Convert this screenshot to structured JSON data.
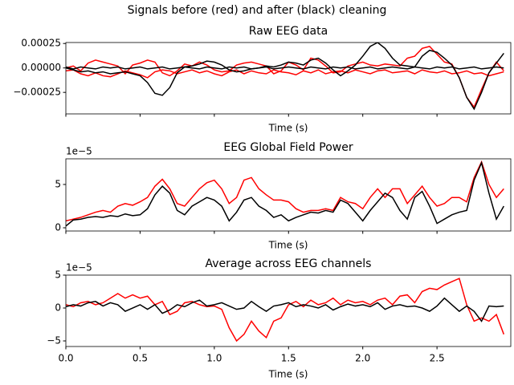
{
  "title": "Signals before (red) and after (black) cleaning",
  "chart_data": [
    {
      "type": "line",
      "title": "Raw EEG data",
      "xlabel": "Time (s)",
      "x": [
        0,
        0.05,
        0.1,
        0.15,
        0.2,
        0.25,
        0.3,
        0.35,
        0.4,
        0.45,
        0.5,
        0.55,
        0.6,
        0.65,
        0.7,
        0.75,
        0.8,
        0.85,
        0.9,
        0.95,
        1.0,
        1.05,
        1.1,
        1.15,
        1.2,
        1.25,
        1.3,
        1.35,
        1.4,
        1.45,
        1.5,
        1.55,
        1.6,
        1.65,
        1.7,
        1.75,
        1.8,
        1.85,
        1.9,
        1.95,
        2.0,
        2.05,
        2.1,
        2.15,
        2.2,
        2.25,
        2.3,
        2.35,
        2.4,
        2.45,
        2.5,
        2.55,
        2.6,
        2.65,
        2.7,
        2.75,
        2.8,
        2.85,
        2.9,
        2.95
      ],
      "xlim": [
        0,
        2.997
      ],
      "xticks": [
        0,
        0.5,
        1,
        1.5,
        2,
        2.5
      ],
      "ylim": [
        -0.00047,
        0.00026
      ],
      "yticks": [
        {
          "value": -0.00025,
          "label": "−0.00025"
        },
        {
          "value": 0,
          "label": "0.00000"
        },
        {
          "value": 0.00025,
          "label": "0.00025"
        }
      ],
      "series": [
        {
          "color": "#ff0000",
          "values": [
            0,
            2e-05,
            -3e-05,
            5e-05,
            8e-05,
            6e-05,
            4e-05,
            2e-05,
            -6e-05,
            3e-05,
            5e-05,
            8e-05,
            6e-05,
            -5e-05,
            -8e-05,
            -3e-05,
            4e-05,
            2e-05,
            6e-05,
            3e-05,
            -2e-05,
            -4e-05,
            -3e-05,
            3e-05,
            5e-05,
            6e-05,
            4e-05,
            2e-05,
            -6e-05,
            -3e-05,
            6e-05,
            3e-05,
            -2e-05,
            0.0001,
            8e-05,
            2e-05,
            -5e-05,
            -4e-05,
            2e-05,
            4e-05,
            6e-05,
            3e-05,
            2e-05,
            4e-05,
            3e-05,
            2e-05,
            0.0001,
            0.00012,
            0.0002,
            0.00022,
            0.00014,
            6e-05,
            4e-05,
            -0.0001,
            -0.0003,
            -0.0004,
            -0.00022,
            -5e-05,
            6e-05,
            -3e-05
          ]
        },
        {
          "color": "#ff0000",
          "values": [
            -3e-05,
            -2e-05,
            -6e-05,
            -8e-05,
            -5e-05,
            -8e-05,
            -9e-05,
            -6e-05,
            -3e-05,
            -5e-05,
            -7e-05,
            -0.0001,
            -4e-05,
            -2e-05,
            -3e-05,
            -6e-05,
            -4e-05,
            -2e-05,
            -5e-05,
            -3e-05,
            -6e-05,
            -8e-05,
            -4e-05,
            -2e-05,
            -6e-05,
            -3e-05,
            -5e-05,
            -6e-05,
            -2e-05,
            -4e-05,
            -5e-05,
            -7e-05,
            -3e-05,
            -5e-05,
            -2e-05,
            -6e-05,
            -4e-05,
            -3e-05,
            -5e-05,
            -2e-05,
            -4e-05,
            -6e-05,
            -3e-05,
            -2e-05,
            -5e-05,
            -4e-05,
            -3e-05,
            -6e-05,
            -2e-05,
            -4e-05,
            -5e-05,
            -3e-05,
            -6e-05,
            -5e-05,
            -3e-05,
            -6e-05,
            -5e-05,
            -8e-05,
            -6e-05,
            -4e-05
          ]
        },
        {
          "color": "#000000",
          "values": [
            1e-05,
            -1e-05,
            1e-05,
            0,
            -1e-05,
            1e-05,
            0,
            1e-05,
            -1e-05,
            0,
            1e-05,
            -1e-05,
            0,
            1e-05,
            -1e-05,
            0,
            1e-05,
            0,
            -1e-05,
            1e-05,
            0,
            -1e-05,
            1e-05,
            0,
            1e-05,
            -1e-05,
            0,
            1e-05,
            -1e-05,
            0,
            1e-05,
            0,
            -1e-05,
            1e-05,
            0,
            -1e-05,
            1e-05,
            0,
            1e-05,
            -1e-05,
            0,
            1e-05,
            -1e-05,
            0,
            1e-05,
            0,
            -1e-05,
            1e-05,
            0,
            -1e-05,
            1e-05,
            0,
            1e-05,
            -1e-05,
            0,
            1e-05,
            -1e-05,
            0,
            1e-05,
            0
          ]
        },
        {
          "color": "#000000",
          "values": [
            0,
            -2e-05,
            -4e-05,
            -3e-05,
            -5e-05,
            -4e-05,
            -6e-05,
            -5e-05,
            -4e-05,
            -6e-05,
            -8e-05,
            -0.00015,
            -0.00026,
            -0.00028,
            -0.0002,
            -5e-05,
            1e-05,
            2e-05,
            4e-05,
            7e-05,
            6e-05,
            3e-05,
            -2e-05,
            -4e-05,
            -3e-05,
            -1e-05,
            0,
            2e-05,
            1e-05,
            3e-05,
            6e-05,
            5e-05,
            3e-05,
            8e-05,
            0.0001,
            5e-05,
            -2e-05,
            -8e-05,
            -3e-05,
            3e-05,
            0.00012,
            0.00022,
            0.00026,
            0.0002,
            0.0001,
            3e-05,
            2e-05,
            1e-05,
            0.00012,
            0.00018,
            0.00016,
            0.0001,
            3e-05,
            -0.0001,
            -0.0003,
            -0.00042,
            -0.00025,
            -5e-05,
            5e-05,
            0.00015
          ]
        }
      ]
    },
    {
      "type": "line",
      "title": "EEG Global Field Power",
      "xlabel": "Time (s)",
      "offset_label": "1e−5",
      "x": [
        0,
        0.05,
        0.1,
        0.15,
        0.2,
        0.25,
        0.3,
        0.35,
        0.4,
        0.45,
        0.5,
        0.55,
        0.6,
        0.65,
        0.7,
        0.75,
        0.8,
        0.85,
        0.9,
        0.95,
        1.0,
        1.05,
        1.1,
        1.15,
        1.2,
        1.25,
        1.3,
        1.35,
        1.4,
        1.45,
        1.5,
        1.55,
        1.6,
        1.65,
        1.7,
        1.75,
        1.8,
        1.85,
        1.9,
        1.95,
        2.0,
        2.05,
        2.1,
        2.15,
        2.2,
        2.25,
        2.3,
        2.35,
        2.4,
        2.45,
        2.5,
        2.55,
        2.6,
        2.65,
        2.7,
        2.75,
        2.8,
        2.85,
        2.9,
        2.95
      ],
      "xlim": [
        0,
        2.997
      ],
      "xticks": [
        0,
        0.5,
        1,
        1.5,
        2,
        2.5
      ],
      "ylim": [
        -0.37,
        7.96
      ],
      "yticks": [
        0,
        5
      ],
      "series": [
        {
          "color": "#ff0000",
          "values": [
            0.8,
            1.0,
            1.2,
            1.5,
            1.8,
            2.0,
            1.8,
            2.5,
            2.8,
            2.6,
            3.0,
            3.5,
            4.8,
            5.6,
            4.5,
            2.8,
            2.5,
            3.5,
            4.5,
            5.2,
            5.5,
            4.5,
            2.8,
            3.5,
            5.5,
            5.8,
            4.5,
            3.8,
            3.2,
            3.2,
            3.0,
            2.2,
            1.8,
            2.0,
            2.0,
            2.2,
            2.0,
            3.5,
            3.0,
            2.8,
            2.2,
            3.5,
            4.5,
            3.5,
            4.5,
            4.5,
            2.8,
            3.8,
            4.8,
            3.5,
            2.5,
            2.8,
            3.5,
            3.5,
            3.0,
            5.8,
            7.6,
            5.0,
            3.5,
            4.5
          ]
        },
        {
          "color": "#000000",
          "values": [
            0.2,
            0.9,
            1.0,
            1.2,
            1.3,
            1.2,
            1.4,
            1.3,
            1.6,
            1.4,
            1.5,
            2.2,
            3.8,
            4.8,
            4.0,
            2.0,
            1.5,
            2.5,
            3.0,
            3.5,
            3.2,
            2.5,
            0.8,
            1.8,
            3.2,
            3.5,
            2.5,
            2.0,
            1.2,
            1.5,
            0.8,
            1.2,
            1.5,
            1.8,
            1.7,
            2.0,
            1.8,
            3.2,
            2.8,
            1.8,
            0.8,
            2.0,
            3.0,
            4.0,
            3.5,
            2.0,
            1.0,
            3.5,
            4.2,
            2.5,
            0.5,
            1.0,
            1.5,
            1.8,
            2.0,
            5.5,
            7.5,
            4.0,
            1.0,
            2.5
          ]
        }
      ]
    },
    {
      "type": "line",
      "title": "Average across EEG channels",
      "xlabel": "Time (s)",
      "offset_label": "1e−5",
      "x": [
        0,
        0.05,
        0.1,
        0.15,
        0.2,
        0.25,
        0.3,
        0.35,
        0.4,
        0.45,
        0.5,
        0.55,
        0.6,
        0.65,
        0.7,
        0.75,
        0.8,
        0.85,
        0.9,
        0.95,
        1.0,
        1.05,
        1.1,
        1.15,
        1.2,
        1.25,
        1.3,
        1.35,
        1.4,
        1.45,
        1.5,
        1.55,
        1.6,
        1.65,
        1.7,
        1.75,
        1.8,
        1.85,
        1.9,
        1.95,
        2.0,
        2.05,
        2.1,
        2.15,
        2.2,
        2.25,
        2.3,
        2.35,
        2.4,
        2.45,
        2.5,
        2.55,
        2.6,
        2.65,
        2.7,
        2.75,
        2.8,
        2.85,
        2.9,
        2.95
      ],
      "xlim": [
        0,
        2.997
      ],
      "xticks": [
        {
          "value": 0,
          "label": "0.0"
        },
        0.5,
        {
          "value": 1,
          "label": "1.0"
        },
        1.5,
        {
          "value": 2,
          "label": "2.0"
        },
        2.5
      ],
      "ylim": [
        -5.85,
        5
      ],
      "yticks": [
        {
          "value": -5,
          "label": "−5"
        },
        0,
        5
      ],
      "series": [
        {
          "color": "#ff0000",
          "values": [
            0.5,
            0.2,
            0.8,
            1.0,
            0.5,
            0.8,
            1.5,
            2.2,
            1.5,
            2.0,
            1.5,
            1.8,
            0.5,
            1.0,
            -1.0,
            -0.5,
            0.8,
            1.0,
            0.5,
            0.2,
            0.3,
            -0.2,
            -3.0,
            -5.0,
            -4.0,
            -2.0,
            -3.5,
            -4.5,
            -2.0,
            -1.5,
            0.5,
            1.0,
            0.2,
            1.2,
            0.5,
            0.8,
            1.5,
            0.5,
            1.2,
            0.8,
            1.0,
            0.5,
            1.2,
            1.5,
            0.5,
            1.8,
            2.0,
            0.8,
            2.5,
            3.0,
            2.8,
            3.5,
            4.0,
            4.5,
            0.5,
            -2.0,
            -1.5,
            -2.0,
            -1.0,
            -4.0
          ]
        },
        {
          "color": "#000000",
          "values": [
            0.2,
            0.5,
            0.3,
            0.8,
            1.0,
            0.3,
            0.8,
            0.5,
            -0.5,
            0,
            0.5,
            -0.2,
            0.5,
            -0.8,
            -0.3,
            0.5,
            0.2,
            0.8,
            1.2,
            0.3,
            0.5,
            0.8,
            0.3,
            -0.2,
            0,
            1.0,
            0.2,
            -0.5,
            0.3,
            0.5,
            0.8,
            0.2,
            0.5,
            0.3,
            0,
            0.5,
            -0.3,
            0.2,
            0.6,
            0.3,
            0.5,
            0.2,
            0.8,
            -0.2,
            0.3,
            0.5,
            0.2,
            0.3,
            0,
            -0.5,
            0.3,
            1.5,
            0.5,
            -0.5,
            0.3,
            -0.5,
            -2.0,
            0.3,
            0.2,
            0.3
          ]
        }
      ]
    }
  ]
}
